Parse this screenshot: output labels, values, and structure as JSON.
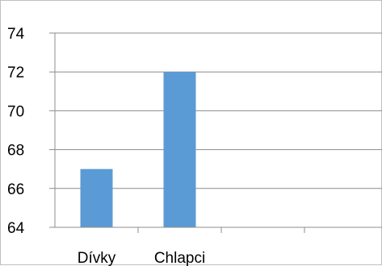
{
  "chart_data": {
    "type": "bar",
    "categories": [
      "Dívky",
      "Chlapci",
      "",
      ""
    ],
    "values": [
      67,
      72,
      null,
      null
    ],
    "ylim": [
      64,
      74
    ],
    "yticks": [
      "64",
      "66",
      "68",
      "70",
      "72",
      "74"
    ],
    "grid": true,
    "legend": "none",
    "colors": {
      "bar": "#5b9bd5",
      "grid": "#8c8c8c",
      "axis": "#8c8c8c",
      "frame": "#bfbfbf"
    }
  }
}
